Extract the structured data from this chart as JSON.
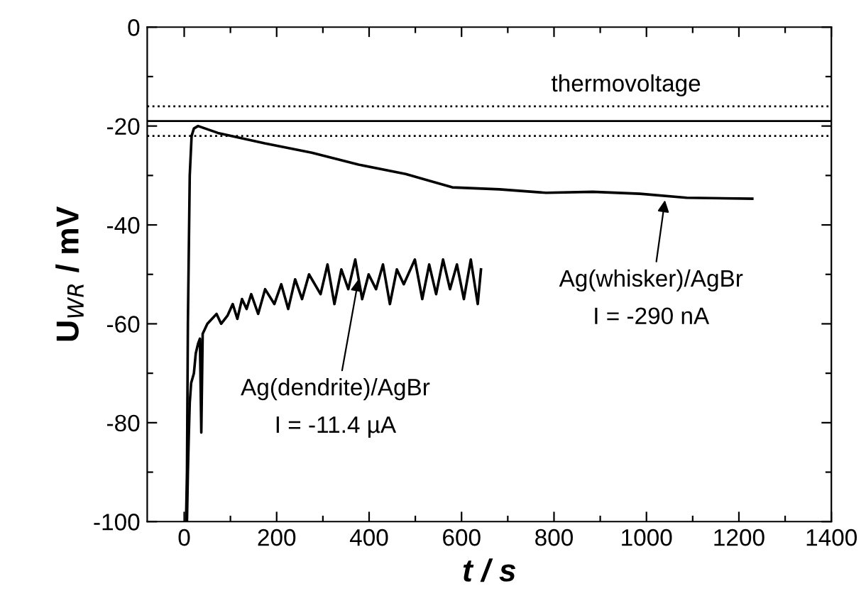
{
  "chart_data": {
    "type": "line",
    "xlabel": "t / s",
    "ylabel": "U$_{WR}$ / mV",
    "xlim": [
      -80,
      1400
    ],
    "ylim": [
      -100,
      0
    ],
    "xticks": [
      0,
      {
        "value": 100,
        "label": null
      },
      200,
      {
        "value": 300,
        "label": null
      },
      400,
      {
        "value": 500,
        "label": null
      },
      600,
      {
        "value": 700,
        "label": null
      },
      800,
      {
        "value": 900,
        "label": null
      },
      1000,
      {
        "value": 1100,
        "label": null
      },
      1200,
      {
        "value": 1300,
        "label": null
      },
      1400
    ],
    "yticks": [
      -100,
      {
        "value": -90,
        "label": null
      },
      -80,
      {
        "value": -70,
        "label": null
      },
      -60,
      {
        "value": -50,
        "label": null
      },
      -40,
      {
        "value": -30,
        "label": null
      },
      -20,
      {
        "value": -10,
        "label": null
      },
      0
    ],
    "grid": false,
    "legend": false,
    "marker": "none",
    "line_style": "solid",
    "series": [
      {
        "color": "#000000",
        "x": [
          4,
          6,
          8,
          12,
          16,
          21,
          30,
          73,
          174,
          276,
          377,
          479,
          580,
          682,
          783,
          884,
          986,
          1087,
          1229
        ],
        "values": [
          -100,
          -90,
          -60,
          -30,
          -22,
          -20.5,
          -20,
          -21.4,
          -23.5,
          -25.4,
          -27.8,
          -29.7,
          -32.4,
          -32.8,
          -33.5,
          -33.3,
          -33.7,
          -34.5,
          -34.7
        ]
      },
      {
        "color": "#000000",
        "x": [
          6,
          8,
          10,
          12,
          15,
          18,
          21,
          25,
          30,
          34,
          37,
          40,
          45,
          50,
          60,
          70,
          80,
          94,
          105,
          115,
          125,
          135,
          145,
          160,
          175,
          195,
          210,
          225,
          240,
          255,
          270,
          295,
          310,
          325,
          340,
          355,
          370,
          385,
          399,
          415,
          430,
          445,
          460,
          475,
          499,
          515,
          530,
          545,
          560,
          575,
          590,
          605,
          620,
          635,
          642
        ],
        "values": [
          -100,
          -90,
          -82.5,
          -76,
          -72,
          -71,
          -70,
          -66,
          -64,
          -63,
          -82,
          -62,
          -61,
          -60,
          -59,
          -58,
          -60,
          -58.3,
          -56,
          -59,
          -55,
          -57,
          -54,
          -58,
          -53,
          -56,
          -52,
          -57,
          -51,
          -55,
          -50,
          -54,
          -48,
          -56,
          -49,
          -53,
          -47,
          -55,
          -50,
          -53,
          -48,
          -56,
          -49,
          -52,
          -47,
          -55,
          -48,
          -54,
          -47,
          -53,
          -48,
          -55,
          -47,
          -56,
          -49
        ]
      }
    ],
    "ref_lines": [
      {
        "axis": "y",
        "value": -16,
        "line_style": "dotted",
        "color": "#000000"
      },
      {
        "axis": "y",
        "value": -19,
        "line_style": "solid",
        "color": "#000000"
      },
      {
        "axis": "y",
        "value": -22,
        "line_style": "dotted",
        "color": "#000000"
      }
    ],
    "annotations": [
      "thermovoltage",
      {
        "text": "Ag(whisker)/AgBr\nI = -290 nA",
        "x": 1040,
        "y": -35
      },
      {
        "text": "Ag(dendrite)/AgBr\nI = -11.4 µA",
        "x": 377,
        "y": -51
      }
    ]
  }
}
